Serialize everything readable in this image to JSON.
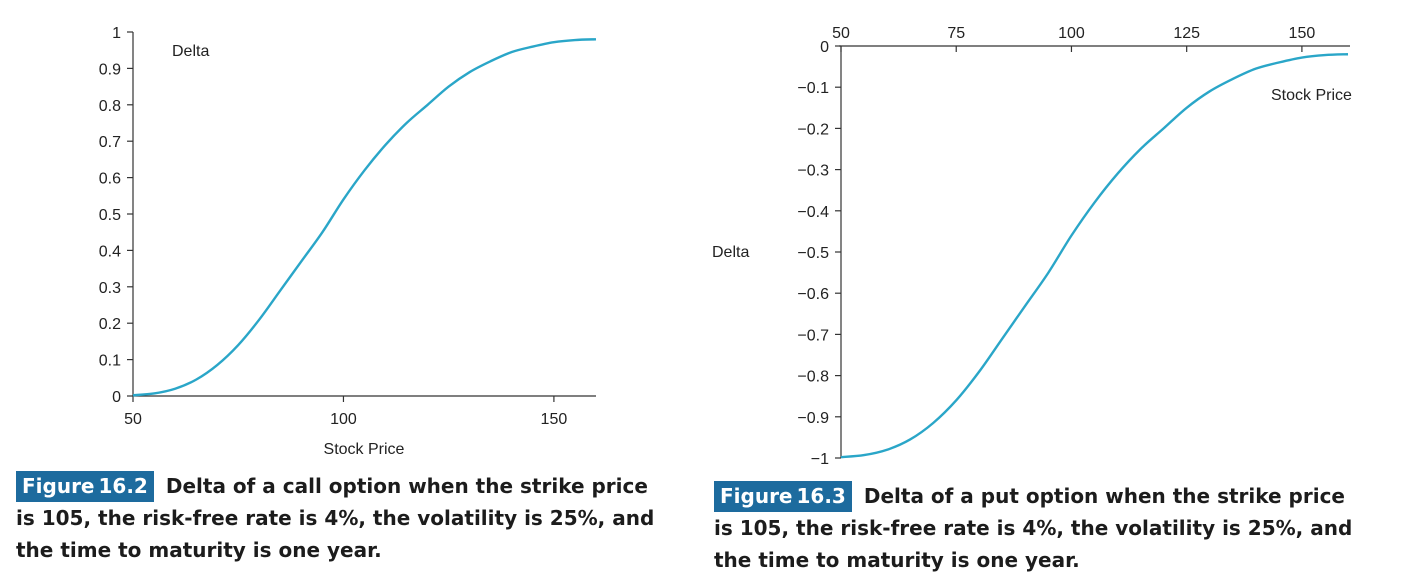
{
  "chart_data": [
    {
      "type": "line",
      "figure_label": "Figure",
      "figure_number": "16.2",
      "caption": "Delta of a call option when the strike price is 105, the risk-free rate is 4%, the volatility is 25%, and the time to maturity is one year.",
      "xlabel": "Stock Price",
      "ylabel": "Delta",
      "xlim": [
        50,
        160
      ],
      "ylim": [
        0,
        1
      ],
      "x_ticks": [
        "50",
        "100",
        "150"
      ],
      "y_ticks": [
        "0",
        "0.1",
        "0.2",
        "0.3",
        "0.4",
        "0.5",
        "0.6",
        "0.7",
        "0.8",
        "0.9",
        "1"
      ],
      "series": [
        {
          "color": "#2aa6c8",
          "x": [
            50,
            55,
            60,
            65,
            70,
            75,
            80,
            85,
            90,
            95,
            100,
            105,
            110,
            115,
            120,
            125,
            130,
            135,
            140,
            145,
            150,
            155,
            160
          ],
          "y": [
            0.002,
            0.007,
            0.02,
            0.045,
            0.085,
            0.14,
            0.21,
            0.29,
            0.37,
            0.45,
            0.54,
            0.62,
            0.69,
            0.75,
            0.8,
            0.85,
            0.89,
            0.92,
            0.945,
            0.96,
            0.972,
            0.978,
            0.98
          ]
        }
      ]
    },
    {
      "type": "line",
      "figure_label": "Figure",
      "figure_number": "16.3",
      "caption": "Delta of a put option when the strike price is 105, the risk-free rate is 4%, the volatility is 25%, and the time to maturity is one year.",
      "xlabel": "Stock Price",
      "ylabel": "Delta",
      "x_axis_position": "top",
      "xlim": [
        50,
        160
      ],
      "ylim": [
        -1,
        0
      ],
      "x_ticks": [
        "50",
        "75",
        "100",
        "125",
        "150"
      ],
      "y_ticks": [
        "0",
        "−0.1",
        "−0.2",
        "−0.3",
        "−0.4",
        "−0.5",
        "−0.6",
        "−0.7",
        "−0.8",
        "−0.9",
        "−1"
      ],
      "series": [
        {
          "color": "#2aa6c8",
          "x": [
            50,
            55,
            60,
            65,
            70,
            75,
            80,
            85,
            90,
            95,
            100,
            105,
            110,
            115,
            120,
            125,
            130,
            135,
            140,
            145,
            150,
            155,
            160
          ],
          "y": [
            -0.998,
            -0.993,
            -0.98,
            -0.955,
            -0.915,
            -0.86,
            -0.79,
            -0.71,
            -0.63,
            -0.55,
            -0.46,
            -0.38,
            -0.31,
            -0.25,
            -0.2,
            -0.15,
            -0.11,
            -0.08,
            -0.055,
            -0.04,
            -0.028,
            -0.022,
            -0.02
          ]
        }
      ]
    }
  ]
}
